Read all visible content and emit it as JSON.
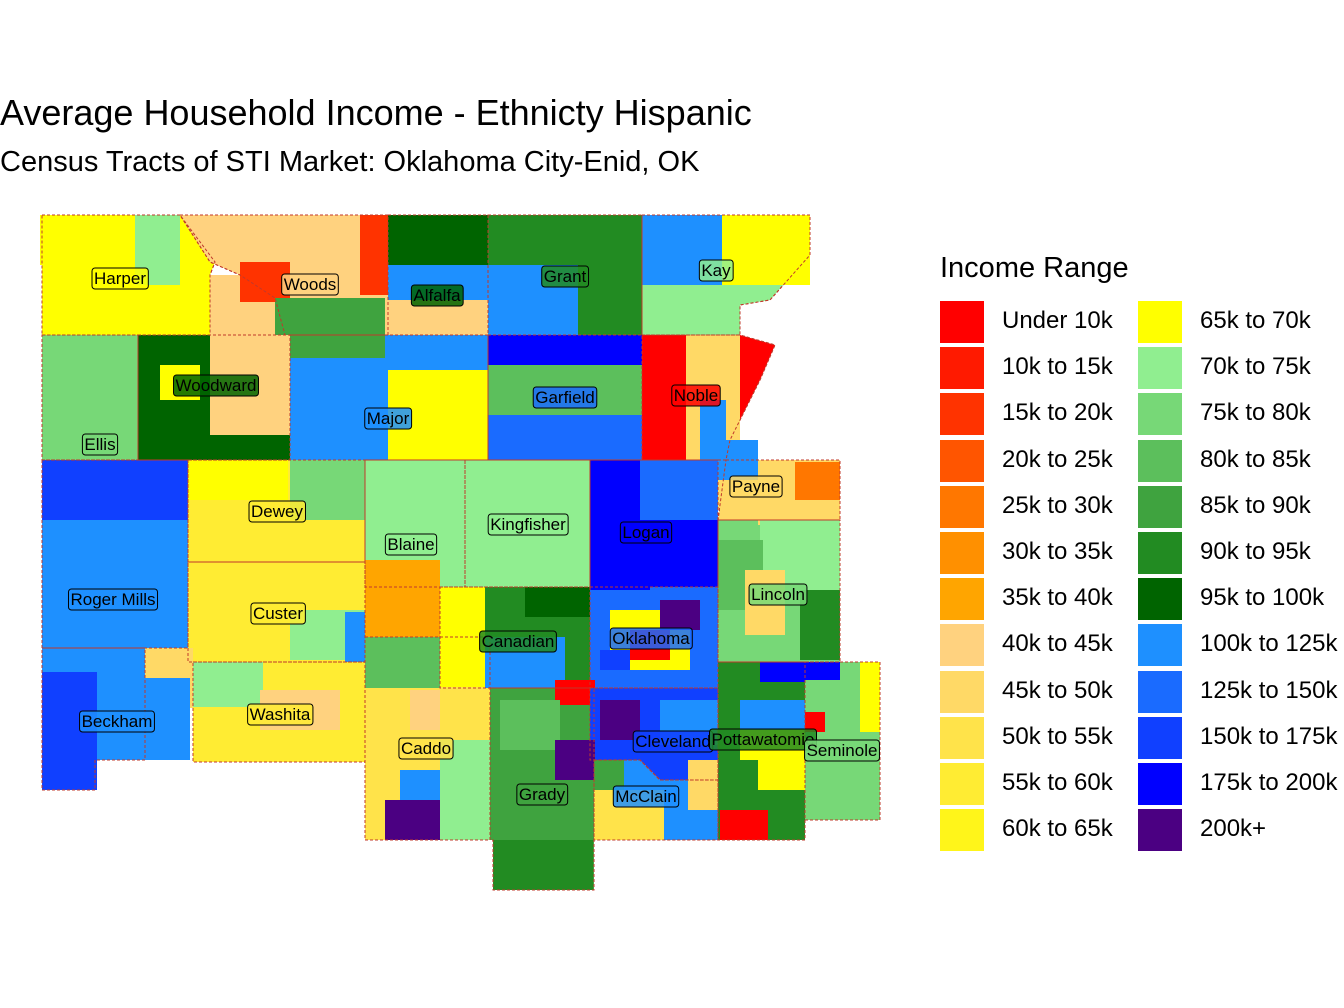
{
  "title": "Average Household Income - Ethnicty Hispanic",
  "subtitle": "Census Tracts of STI Market: Oklahoma City-Enid, OK",
  "legend": {
    "title": "Income Range",
    "items": [
      {
        "label": "Under 10k",
        "color": "#FF0000"
      },
      {
        "label": "10k to 15k",
        "color": "#FF1A00"
      },
      {
        "label": "15k to 20k",
        "color": "#FF3300"
      },
      {
        "label": "20k to 25k",
        "color": "#FF5500"
      },
      {
        "label": "25k to 30k",
        "color": "#FF7700"
      },
      {
        "label": "30k to 35k",
        "color": "#FF9000"
      },
      {
        "label": "35k to 40k",
        "color": "#FFA500"
      },
      {
        "label": "40k to 45k",
        "color": "#FFD27F"
      },
      {
        "label": "45k to 50k",
        "color": "#FFD966"
      },
      {
        "label": "50k to 55k",
        "color": "#FFE34A"
      },
      {
        "label": "55k to 60k",
        "color": "#FFEC33"
      },
      {
        "label": "60k to 65k",
        "color": "#FFF51A"
      },
      {
        "label": "65k to 70k",
        "color": "#FFFF00"
      },
      {
        "label": "70k to 75k",
        "color": "#90EE90"
      },
      {
        "label": "75k to 80k",
        "color": "#77D877"
      },
      {
        "label": "80k to 85k",
        "color": "#5CBF5C"
      },
      {
        "label": "85k to 90k",
        "color": "#3FA33F"
      },
      {
        "label": "90k to 95k",
        "color": "#228B22"
      },
      {
        "label": "95k to 100k",
        "color": "#006400"
      },
      {
        "label": "100k to 125k",
        "color": "#1E90FF"
      },
      {
        "label": "125k to 150k",
        "color": "#1A6BFF"
      },
      {
        "label": "150k to 175k",
        "color": "#1040FF"
      },
      {
        "label": "175k to 200k",
        "color": "#0000FF"
      },
      {
        "label": "200k+",
        "color": "#4B0082"
      }
    ]
  },
  "counties": [
    {
      "name": "Harper",
      "color": "#FFFF00"
    },
    {
      "name": "Woods",
      "color": "#FFD27F"
    },
    {
      "name": "Alfalfa",
      "color": "#006400"
    },
    {
      "name": "Grant",
      "color": "#228B22"
    },
    {
      "name": "Kay",
      "color": "#90EE90"
    },
    {
      "name": "Woodward",
      "color": "#006400"
    },
    {
      "name": "Major",
      "color": "#1E90FF"
    },
    {
      "name": "Garfield",
      "color": "#1A6BFF"
    },
    {
      "name": "Noble",
      "color": "#FF0000"
    },
    {
      "name": "Ellis",
      "color": "#77D877"
    },
    {
      "name": "Payne",
      "color": "#FFD966"
    },
    {
      "name": "Dewey",
      "color": "#FFEC33"
    },
    {
      "name": "Kingfisher",
      "color": "#90EE90"
    },
    {
      "name": "Blaine",
      "color": "#90EE90"
    },
    {
      "name": "Logan",
      "color": "#0000FF"
    },
    {
      "name": "Roger Mills",
      "color": "#1E90FF"
    },
    {
      "name": "Custer",
      "color": "#FFEC33"
    },
    {
      "name": "Lincoln",
      "color": "#77D877"
    },
    {
      "name": "Canadian",
      "color": "#228B22"
    },
    {
      "name": "Oklahoma",
      "color": "#1A6BFF"
    },
    {
      "name": "Beckham",
      "color": "#1E90FF"
    },
    {
      "name": "Washita",
      "color": "#FFEC33"
    },
    {
      "name": "Caddo",
      "color": "#FFE34A"
    },
    {
      "name": "Cleveland",
      "color": "#1040FF"
    },
    {
      "name": "Pottawatomie",
      "color": "#228B22"
    },
    {
      "name": "Seminole",
      "color": "#77D877"
    },
    {
      "name": "Grady",
      "color": "#3FA33F"
    },
    {
      "name": "McClain",
      "color": "#1E90FF"
    }
  ]
}
